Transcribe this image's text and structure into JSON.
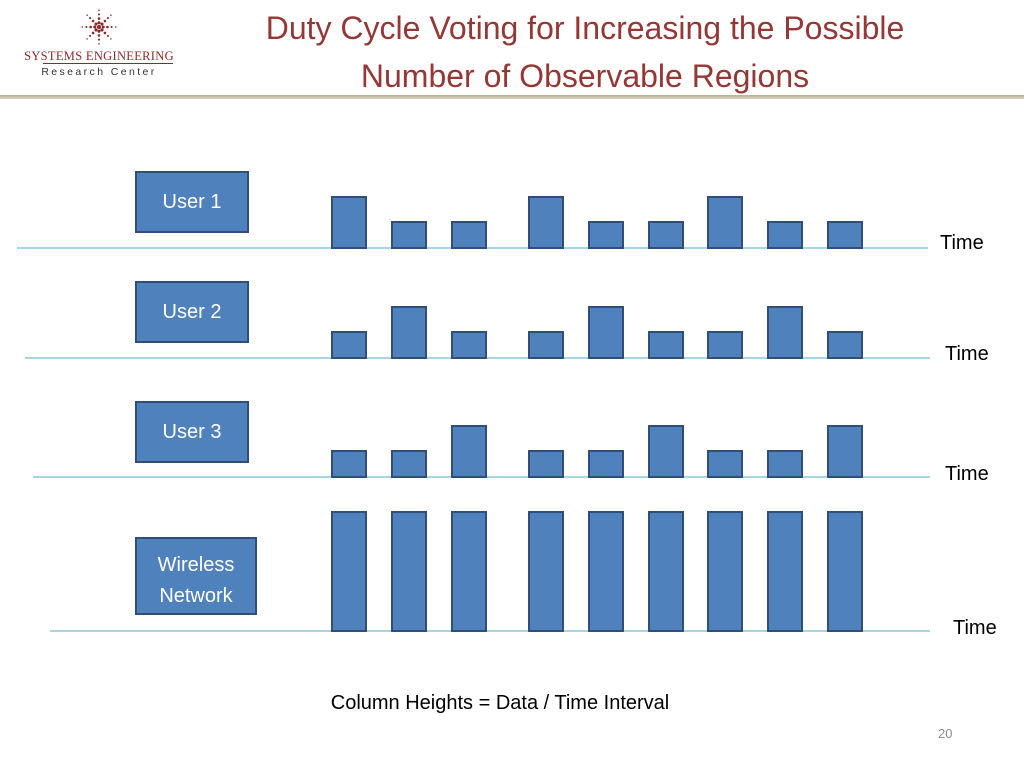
{
  "header": {
    "title_line1": "Duty Cycle Voting for Increasing the Possible",
    "title_line2": "Number of Observable Regions",
    "logo_line1": "SYSTEMS ENGINEERING",
    "logo_line2": "Research Center"
  },
  "rows": [
    {
      "label": "User 1",
      "time_label": "Time",
      "heights": [
        "high",
        "low",
        "low",
        "high",
        "low",
        "low",
        "high",
        "low",
        "low"
      ]
    },
    {
      "label": "User 2",
      "time_label": "Time",
      "heights": [
        "low",
        "high",
        "low",
        "low",
        "high",
        "low",
        "low",
        "high",
        "low"
      ]
    },
    {
      "label": "User 3",
      "time_label": "Time",
      "heights": [
        "low",
        "low",
        "high",
        "low",
        "low",
        "high",
        "low",
        "low",
        "high"
      ]
    },
    {
      "label_line1": "Wireless",
      "label_line2": "Network",
      "time_label": "Time",
      "heights": [
        "tall",
        "tall",
        "tall",
        "tall",
        "tall",
        "tall",
        "tall",
        "tall",
        "tall"
      ]
    }
  ],
  "caption": "Column Heights = Data / Time Interval",
  "page_number": "20",
  "colors": {
    "bar_fill": "#4f81bd",
    "bar_stroke": "#2f4f7a",
    "axis_line": "#4bacc6",
    "title": "#953735"
  }
}
